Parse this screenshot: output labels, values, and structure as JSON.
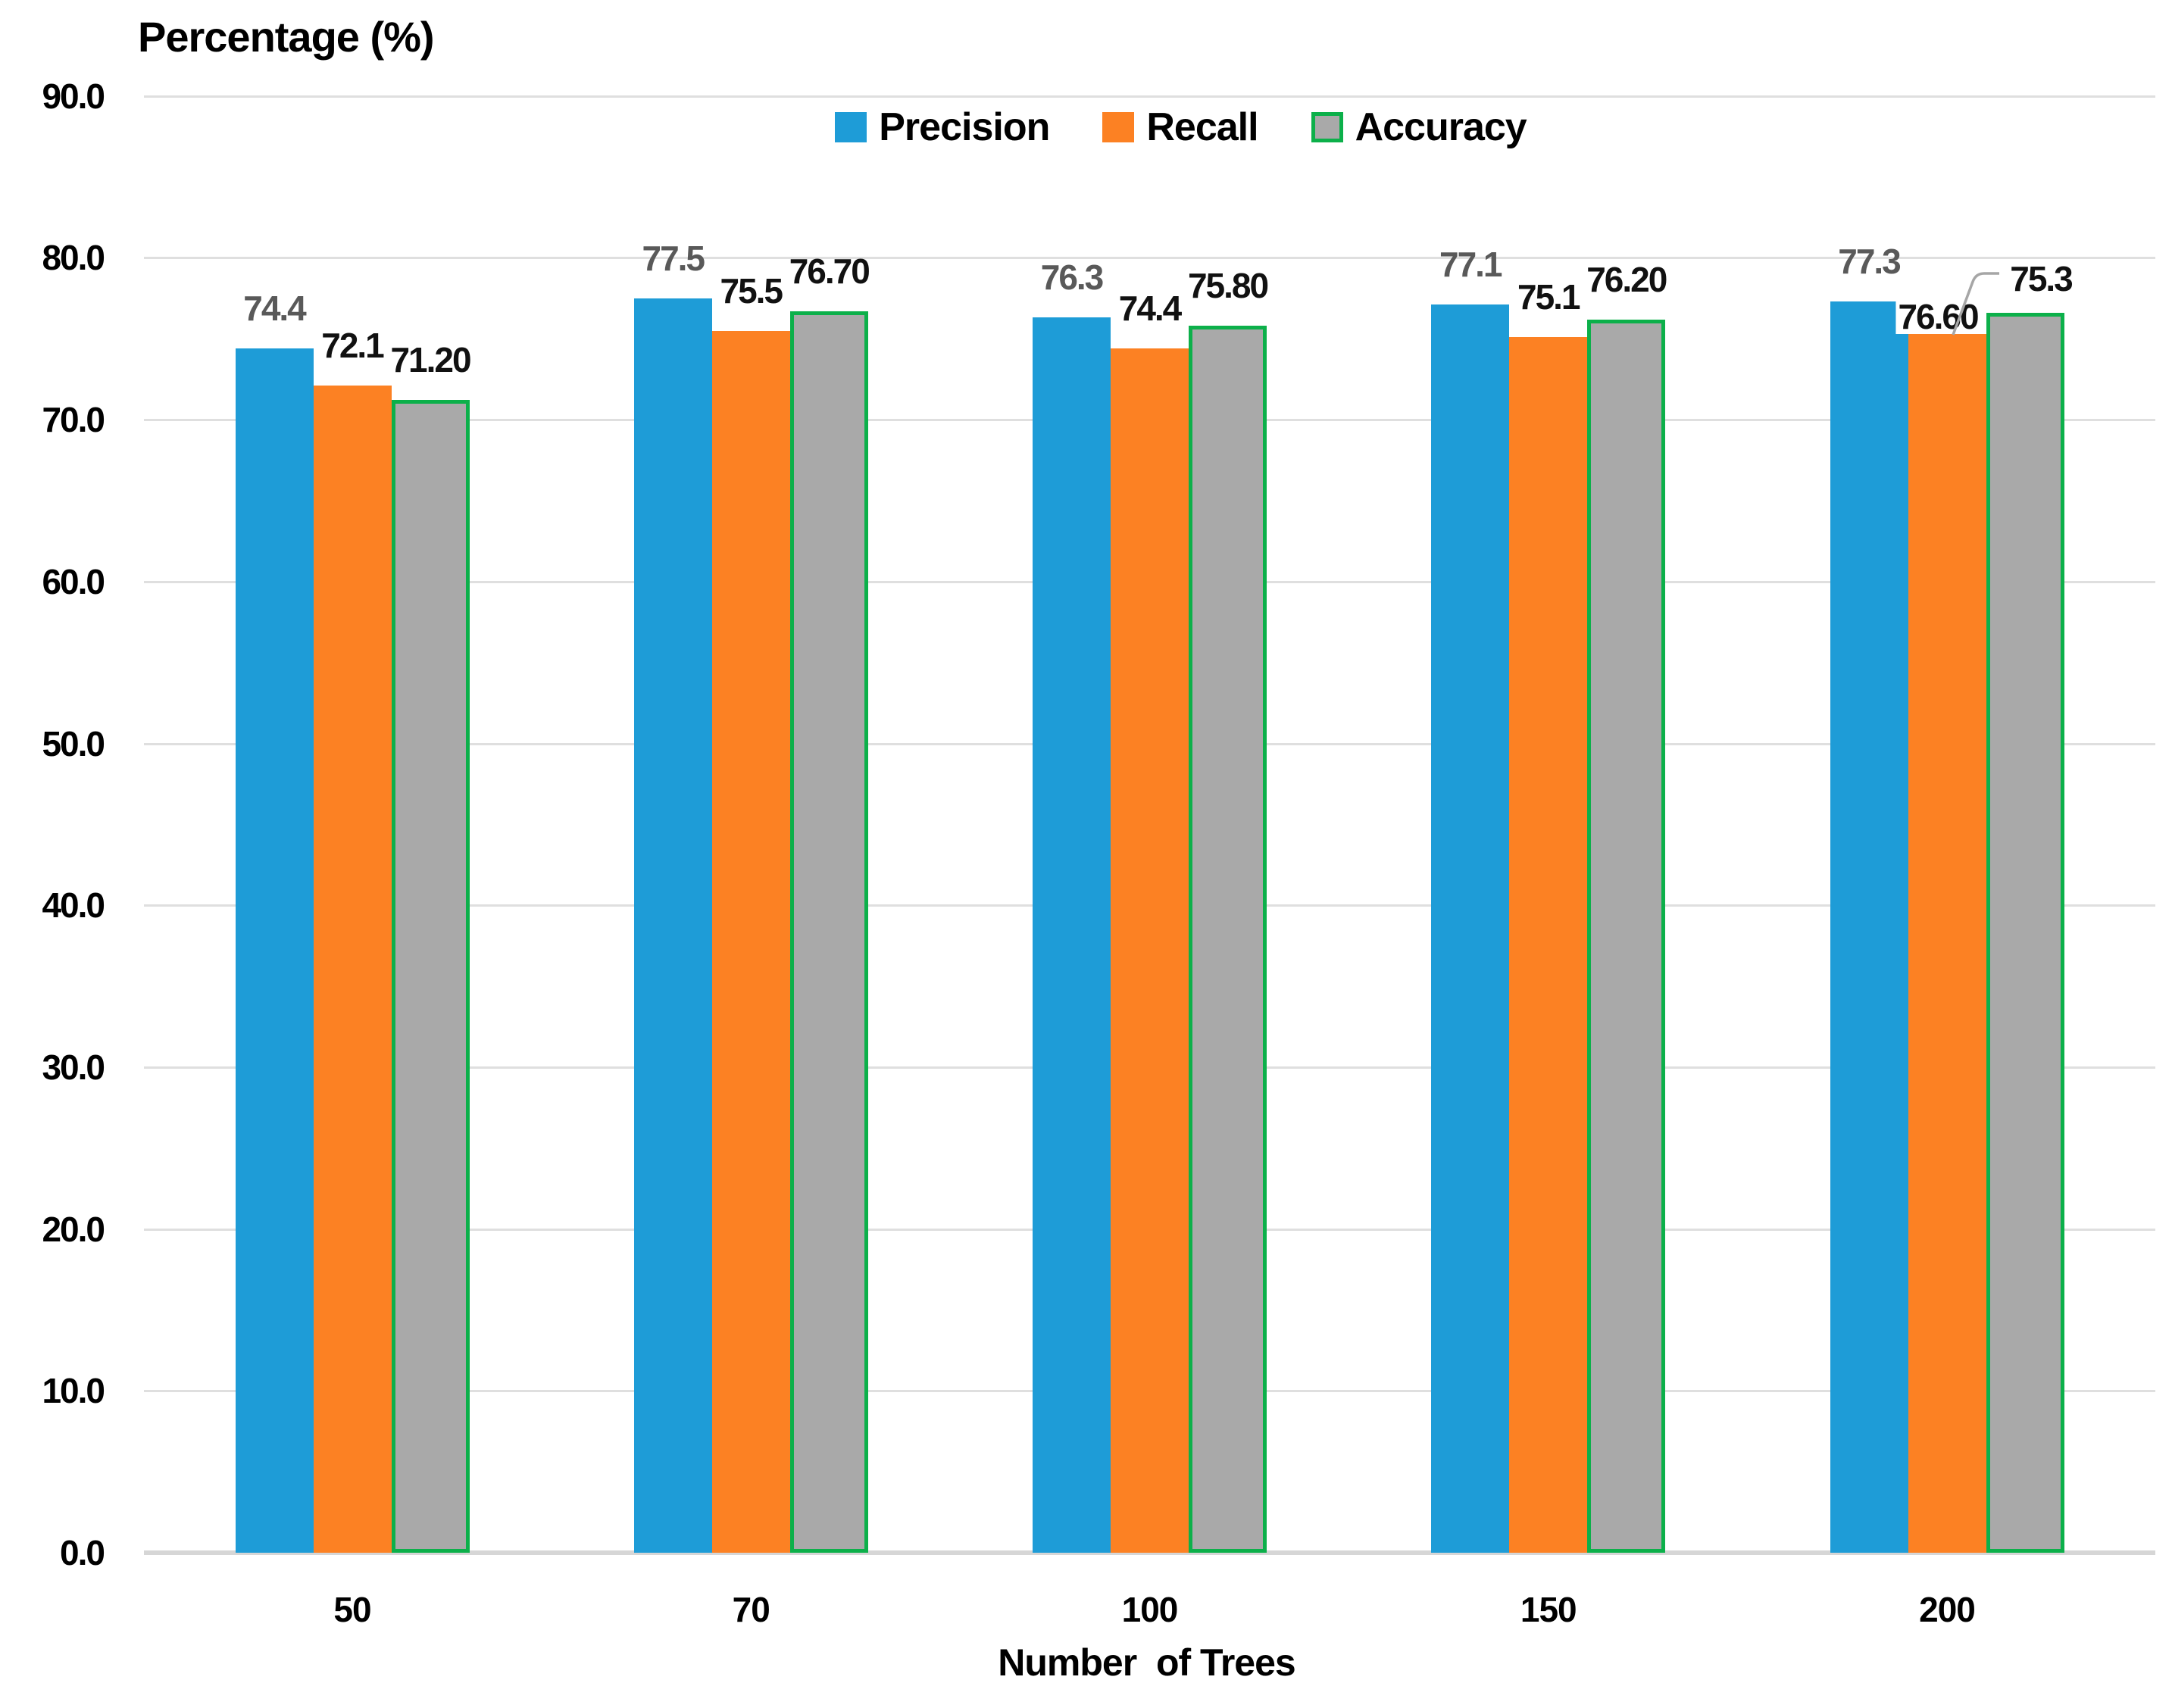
{
  "chart_data": {
    "type": "bar",
    "title": "Percentage (%)",
    "xlabel": "Number  of Trees",
    "categories": [
      "50",
      "70",
      "100",
      "150",
      "200"
    ],
    "series": [
      {
        "name": "Precision",
        "color": "#1E9CD7",
        "values": [
          74.4,
          77.5,
          76.3,
          77.1,
          77.3
        ],
        "labels": [
          "74.4",
          "77.5",
          "76.3",
          "77.1",
          "77.3"
        ],
        "label_color": "#595959"
      },
      {
        "name": "Recall",
        "color": "#FC8123",
        "values": [
          72.1,
          75.5,
          74.4,
          75.1,
          75.3
        ],
        "labels": [
          "72.1",
          "75.5",
          "74.4",
          "75.1",
          "75.3"
        ],
        "label_color": "#111111"
      },
      {
        "name": "Accuracy",
        "color": "#A9A9A9",
        "border_color": "#0CB04A",
        "values": [
          71.2,
          76.7,
          75.8,
          76.2,
          76.6
        ],
        "labels": [
          "71.20",
          "76.70",
          "75.80",
          "76.20",
          "76.60"
        ],
        "label_color": "#111111"
      }
    ],
    "y_ticks": [
      "90.0",
      "80.0",
      "70.0",
      "60.0",
      "50.0",
      "40.0",
      "30.0",
      "20.0",
      "10.0",
      "0.0"
    ],
    "ylim": [
      0,
      90
    ],
    "grid": true,
    "legend_position": "top-center",
    "annotation": {
      "leader_line_target_label": "75.3",
      "leader_line_color": "#A6A6A6"
    },
    "gridline_color": "#DFDFDF",
    "axis_line_color": "#D6D6D6"
  }
}
